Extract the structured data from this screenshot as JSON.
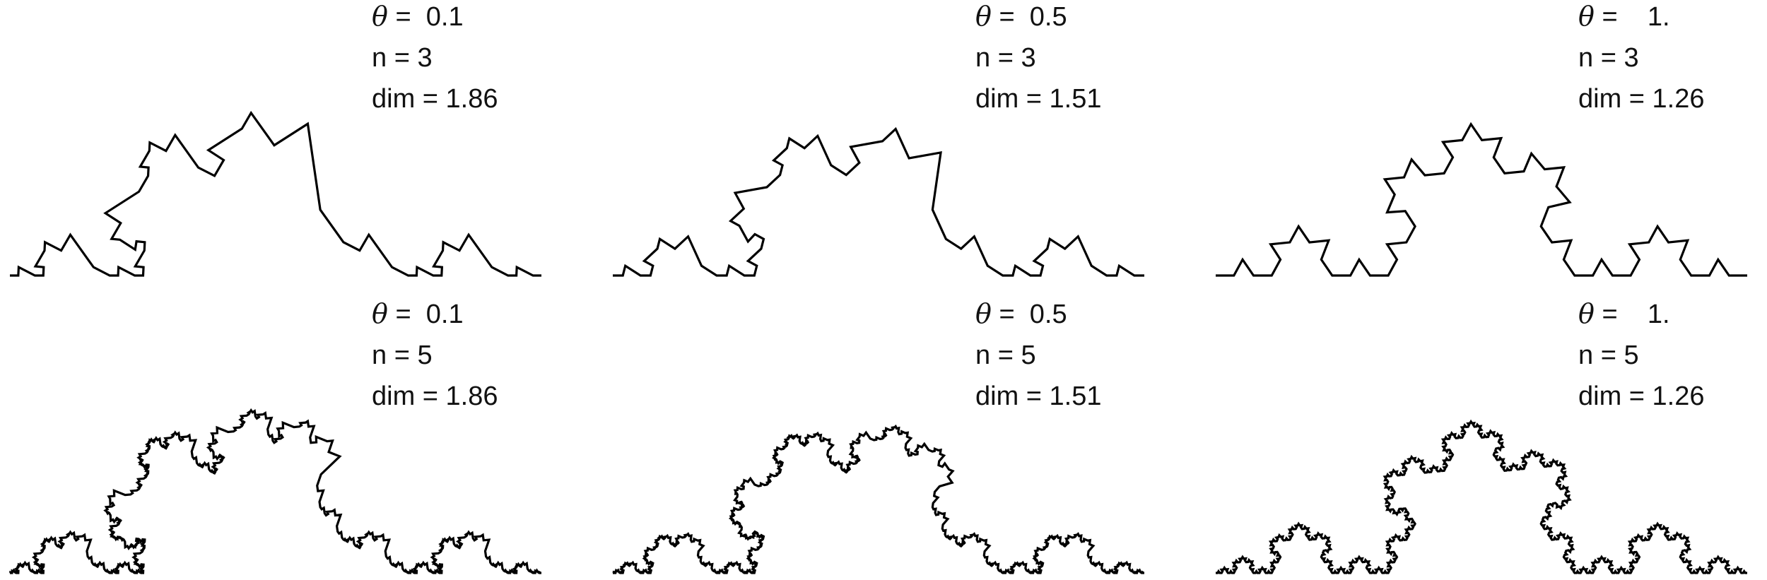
{
  "panels": [
    {
      "theta_symbol": "θ",
      "theta_text": " =  0.1",
      "n_text": "n = 3",
      "dim_text": "dim = 1.86",
      "theta": 0.1,
      "n": 3
    },
    {
      "theta_symbol": "θ",
      "theta_text": " =  0.5",
      "n_text": "n = 3",
      "dim_text": "dim = 1.51",
      "theta": 0.5,
      "n": 3
    },
    {
      "theta_symbol": "θ",
      "theta_text": " =    1.",
      "n_text": "n = 3",
      "dim_text": "dim = 1.26",
      "theta": 1.0,
      "n": 3
    },
    {
      "theta_symbol": "θ",
      "theta_text": " =  0.1",
      "n_text": "n = 5",
      "dim_text": "dim = 1.86",
      "theta": 0.1,
      "n": 5
    },
    {
      "theta_symbol": "θ",
      "theta_text": " =  0.5",
      "n_text": "n = 5",
      "dim_text": "dim = 1.51",
      "theta": 0.5,
      "n": 5
    },
    {
      "theta_symbol": "θ",
      "theta_text": " =    1.",
      "n_text": "n = 5",
      "dim_text": "dim = 1.26",
      "theta": 1.0,
      "n": 5
    }
  ],
  "colors": {
    "stroke": "#000000",
    "background": "#ffffff",
    "text": "#111111"
  }
}
